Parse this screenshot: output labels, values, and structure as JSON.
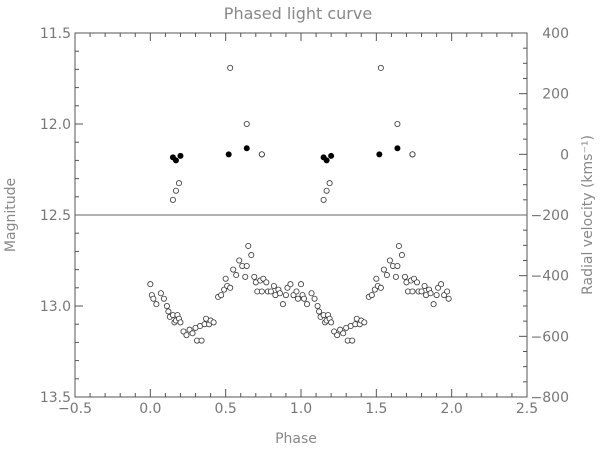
{
  "chart_data": {
    "type": "scatter",
    "title": "Phased light curve",
    "xlabel": "Phase",
    "ylabel": "Magnitude",
    "y2label": "Radial velocity (kms⁻¹)",
    "xlim": [
      -0.5,
      2.5
    ],
    "ylim": [
      13.5,
      11.5
    ],
    "y2lim": [
      -800,
      400
    ],
    "x_ticks": [
      -0.5,
      0.0,
      0.5,
      1.0,
      1.5,
      2.0,
      2.5
    ],
    "x_tick_labels": [
      "−0.5",
      "0.0",
      "0.5",
      "1.0",
      "1.5",
      "2.0",
      "2.5"
    ],
    "y_ticks": [
      11.5,
      12.0,
      12.5,
      13.0,
      13.5
    ],
    "y_tick_labels": [
      "11.5",
      "12.0",
      "12.5",
      "13.0",
      "13.5"
    ],
    "y2_ticks": [
      400,
      200,
      0,
      -200,
      -400,
      -600,
      -800
    ],
    "y2_tick_labels": [
      "400",
      "200",
      "0",
      "−200",
      "−400",
      "−600",
      "−800"
    ],
    "reference_line_magnitude": 12.5,
    "grid": false,
    "series": [
      {
        "marker": "open-circle",
        "axis": "left",
        "points": [
          [
            0.0,
            12.88
          ],
          [
            0.01,
            12.94
          ],
          [
            0.02,
            12.96
          ],
          [
            0.04,
            12.99
          ],
          [
            0.07,
            12.93
          ],
          [
            0.09,
            12.96
          ],
          [
            0.11,
            13.0
          ],
          [
            0.12,
            13.03
          ],
          [
            0.13,
            13.06
          ],
          [
            0.15,
            13.05
          ],
          [
            0.16,
            13.09
          ],
          [
            0.17,
            13.08
          ],
          [
            0.18,
            13.05
          ],
          [
            0.19,
            13.07
          ],
          [
            0.2,
            13.09
          ],
          [
            0.22,
            13.14
          ],
          [
            0.24,
            13.16
          ],
          [
            0.26,
            13.13
          ],
          [
            0.28,
            13.15
          ],
          [
            0.3,
            13.12
          ],
          [
            0.31,
            13.19
          ],
          [
            0.33,
            13.11
          ],
          [
            0.34,
            13.19
          ],
          [
            0.36,
            13.1
          ],
          [
            0.37,
            13.07
          ],
          [
            0.39,
            13.1
          ],
          [
            0.4,
            13.08
          ],
          [
            0.42,
            13.09
          ],
          [
            0.45,
            12.95
          ],
          [
            0.47,
            12.94
          ],
          [
            0.49,
            12.91
          ],
          [
            0.5,
            12.85
          ],
          [
            0.51,
            12.89
          ],
          [
            0.53,
            12.9
          ],
          [
            0.55,
            12.8
          ],
          [
            0.57,
            12.83
          ],
          [
            0.59,
            12.75
          ],
          [
            0.61,
            12.78
          ],
          [
            0.63,
            12.84
          ],
          [
            0.64,
            12.78
          ],
          [
            0.65,
            12.67
          ],
          [
            0.67,
            12.72
          ],
          [
            0.69,
            12.84
          ],
          [
            0.7,
            12.87
          ],
          [
            0.71,
            12.92
          ],
          [
            0.73,
            12.86
          ],
          [
            0.74,
            12.92
          ],
          [
            0.75,
            12.85
          ],
          [
            0.77,
            12.87
          ],
          [
            0.78,
            12.92
          ],
          [
            0.8,
            12.92
          ],
          [
            0.82,
            12.89
          ],
          [
            0.83,
            12.94
          ],
          [
            0.85,
            12.91
          ],
          [
            0.86,
            12.93
          ],
          [
            0.88,
            12.99
          ],
          [
            0.9,
            12.94
          ],
          [
            0.91,
            12.9
          ],
          [
            0.93,
            12.88
          ],
          [
            0.95,
            12.94
          ],
          [
            0.97,
            12.92
          ],
          [
            0.98,
            12.96
          ]
        ]
      },
      {
        "marker": "filled-circle",
        "axis": "right",
        "points": [
          [
            0.15,
            -10
          ],
          [
            0.17,
            -20
          ],
          [
            0.2,
            -5
          ],
          [
            0.52,
            0
          ],
          [
            0.64,
            20
          ],
          [
            0.74,
            0
          ]
        ]
      },
      {
        "marker": "open-circle",
        "axis": "right",
        "points": [
          [
            0.15,
            -150
          ],
          [
            0.17,
            -120
          ],
          [
            0.19,
            -95
          ],
          [
            0.53,
            285
          ],
          [
            0.64,
            100
          ],
          [
            0.74,
            0
          ]
        ]
      }
    ]
  }
}
